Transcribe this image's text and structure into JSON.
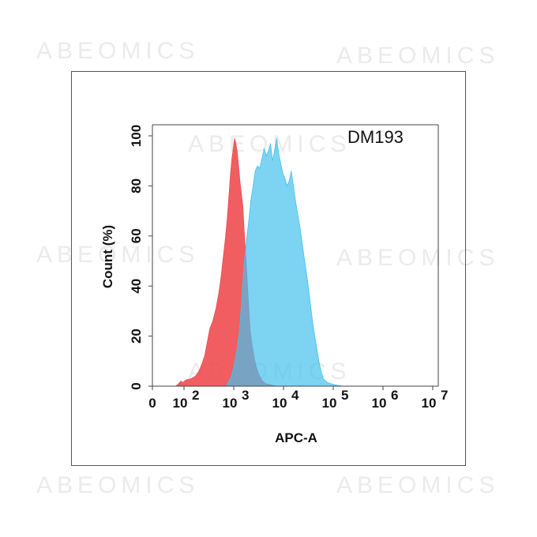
{
  "watermarks": [
    "ABEOMICS",
    "ABEOMICS",
    "ABEOMICS",
    "ABEOMICS",
    "ABEOMICS",
    "ABEOMICS",
    "ABEOMICS",
    "ABEOMICS",
    "ABEOMICS"
  ],
  "chart_data": {
    "type": "area",
    "title": "",
    "annotation": "DM193",
    "xlabel": "APC-A",
    "ylabel": "Count  (%)",
    "x_scale": "log",
    "xlim": [
      0,
      10000000
    ],
    "ylim": [
      0,
      100
    ],
    "x_ticks": [
      {
        "value": 0,
        "base": "0",
        "exp": ""
      },
      {
        "value": 100,
        "base": "10",
        "exp": "2"
      },
      {
        "value": 1000,
        "base": "10",
        "exp": "3"
      },
      {
        "value": 10000,
        "base": "10",
        "exp": "4"
      },
      {
        "value": 100000,
        "base": "10",
        "exp": "5"
      },
      {
        "value": 1000000,
        "base": "10",
        "exp": "6"
      },
      {
        "value": 10000000,
        "base": "10",
        "exp": "7"
      }
    ],
    "y_ticks": [
      0,
      20,
      40,
      60,
      80,
      100
    ],
    "grid": false,
    "legend": "none",
    "series": [
      {
        "color": "#ee4c50",
        "points": [
          [
            40,
            0
          ],
          [
            55,
            1
          ],
          [
            70,
            2
          ],
          [
            90,
            1.5
          ],
          [
            110,
            2.5
          ],
          [
            140,
            3
          ],
          [
            170,
            4
          ],
          [
            200,
            6
          ],
          [
            230,
            9
          ],
          [
            260,
            12
          ],
          [
            290,
            17
          ],
          [
            330,
            23
          ],
          [
            380,
            26
          ],
          [
            440,
            31
          ],
          [
            500,
            37
          ],
          [
            560,
            44
          ],
          [
            620,
            52
          ],
          [
            680,
            59
          ],
          [
            740,
            67
          ],
          [
            800,
            76
          ],
          [
            860,
            85
          ],
          [
            920,
            91
          ],
          [
            980,
            95
          ],
          [
            1040,
            99
          ],
          [
            1100,
            97
          ],
          [
            1170,
            94
          ],
          [
            1250,
            88
          ],
          [
            1330,
            82
          ],
          [
            1420,
            77
          ],
          [
            1520,
            72
          ],
          [
            1620,
            62
          ],
          [
            1740,
            52
          ],
          [
            1870,
            42
          ],
          [
            2000,
            31
          ],
          [
            2150,
            22
          ],
          [
            2350,
            16
          ],
          [
            2600,
            11
          ],
          [
            2900,
            7
          ],
          [
            3300,
            4
          ],
          [
            3800,
            2
          ],
          [
            4400,
            1
          ],
          [
            5500,
            0.5
          ],
          [
            7000,
            0
          ]
        ]
      },
      {
        "color": "#45c1ec",
        "points": [
          [
            700,
            0
          ],
          [
            800,
            2
          ],
          [
            900,
            4
          ],
          [
            1000,
            8
          ],
          [
            1150,
            14
          ],
          [
            1300,
            22
          ],
          [
            1450,
            35
          ],
          [
            1600,
            48
          ],
          [
            1800,
            58
          ],
          [
            2000,
            66
          ],
          [
            2200,
            74
          ],
          [
            2450,
            80
          ],
          [
            2700,
            86
          ],
          [
            3000,
            88
          ],
          [
            3300,
            87
          ],
          [
            3700,
            91
          ],
          [
            4100,
            95
          ],
          [
            4500,
            92
          ],
          [
            5000,
            94
          ],
          [
            5500,
            97
          ],
          [
            6000,
            90
          ],
          [
            6600,
            94
          ],
          [
            7300,
            99
          ],
          [
            8000,
            93
          ],
          [
            8800,
            89
          ],
          [
            9700,
            85
          ],
          [
            10700,
            83
          ],
          [
            11800,
            80
          ],
          [
            13000,
            82
          ],
          [
            14300,
            86
          ],
          [
            15800,
            80
          ],
          [
            17400,
            74
          ],
          [
            19200,
            69
          ],
          [
            21200,
            64
          ],
          [
            23400,
            58
          ],
          [
            25800,
            52
          ],
          [
            28500,
            46
          ],
          [
            31400,
            40
          ],
          [
            34700,
            33
          ],
          [
            38300,
            26
          ],
          [
            42300,
            20
          ],
          [
            46700,
            15
          ],
          [
            51500,
            10
          ],
          [
            56900,
            6
          ],
          [
            63000,
            3
          ],
          [
            75000,
            1.5
          ],
          [
            90000,
            1
          ],
          [
            110000,
            0.5
          ],
          [
            160000,
            0
          ]
        ]
      }
    ]
  }
}
